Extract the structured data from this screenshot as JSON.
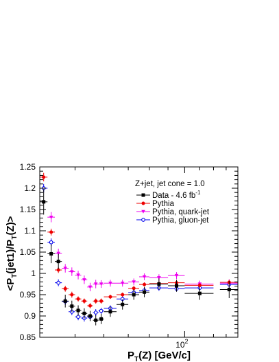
{
  "chart_data": {
    "type": "scatter",
    "title": "",
    "xlabel": "P_T(Z) [GeV/c]",
    "ylabel": "<P_T(jet1)/P_T(Z)>",
    "xscale": "log",
    "xlim": [
      40,
      140
    ],
    "ylim": [
      0.85,
      1.25
    ],
    "x_tick_labels": [
      {
        "value": 100,
        "base": "10",
        "exp": "2"
      }
    ],
    "y_ticks": [
      "0.85",
      "0.9",
      "0.95",
      "1",
      "1.05",
      "1.1",
      "1.15",
      "1.2",
      "1.25"
    ],
    "legend_header": "Z+jet, jet cone = 1.0",
    "legend_placement": "top-right",
    "grid": false,
    "series": [
      {
        "name": "Data - 4.6 fb",
        "name_sup": "-1",
        "color": "#000000",
        "marker": "square-filled",
        "points": [
          {
            "x": 41.0,
            "y": 1.168,
            "xerr": 1.0,
            "yerr": 0.03
          },
          {
            "x": 43.0,
            "y": 1.046,
            "xerr": 1.0,
            "yerr": 0.022
          },
          {
            "x": 45.0,
            "y": 1.028,
            "xerr": 1.0,
            "yerr": 0.018
          },
          {
            "x": 47.0,
            "y": 0.935,
            "xerr": 1.0,
            "yerr": 0.015
          },
          {
            "x": 49.0,
            "y": 0.923,
            "xerr": 1.0,
            "yerr": 0.013
          },
          {
            "x": 51.0,
            "y": 0.913,
            "xerr": 1.0,
            "yerr": 0.012
          },
          {
            "x": 53.0,
            "y": 0.906,
            "xerr": 1.0,
            "yerr": 0.012
          },
          {
            "x": 55.0,
            "y": 0.9,
            "xerr": 1.0,
            "yerr": 0.012
          },
          {
            "x": 57.0,
            "y": 0.89,
            "xerr": 1.0,
            "yerr": 0.012
          },
          {
            "x": 59.0,
            "y": 0.893,
            "xerr": 1.0,
            "yerr": 0.012
          },
          {
            "x": 62.5,
            "y": 0.91,
            "xerr": 2.5,
            "yerr": 0.012
          },
          {
            "x": 67.5,
            "y": 0.927,
            "xerr": 2.5,
            "yerr": 0.012
          },
          {
            "x": 72.5,
            "y": 0.95,
            "xerr": 2.5,
            "yerr": 0.012
          },
          {
            "x": 77.5,
            "y": 0.956,
            "xerr": 2.5,
            "yerr": 0.012
          },
          {
            "x": 85.0,
            "y": 0.975,
            "xerr": 5.0,
            "yerr": 0.013
          },
          {
            "x": 95.0,
            "y": 0.971,
            "xerr": 5.0,
            "yerr": 0.014
          },
          {
            "x": 110.0,
            "y": 0.953,
            "xerr": 10.0,
            "yerr": 0.015
          },
          {
            "x": 132.5,
            "y": 0.962,
            "xerr": 7.5,
            "yerr": 0.02
          }
        ]
      },
      {
        "name": "Pythia",
        "color": "#ee0000",
        "marker": "circle-filled",
        "points": [
          {
            "x": 41.0,
            "y": 1.226,
            "xerr": 1.0,
            "yerr": 0.01
          },
          {
            "x": 43.0,
            "y": 1.097,
            "xerr": 1.0,
            "yerr": 0.008
          },
          {
            "x": 45.0,
            "y": 1.008,
            "xerr": 1.0,
            "yerr": 0.007
          },
          {
            "x": 47.0,
            "y": 0.964,
            "xerr": 1.0,
            "yerr": 0.007
          },
          {
            "x": 49.0,
            "y": 0.95,
            "xerr": 1.0,
            "yerr": 0.007
          },
          {
            "x": 51.0,
            "y": 0.94,
            "xerr": 1.0,
            "yerr": 0.006
          },
          {
            "x": 53.0,
            "y": 0.935,
            "xerr": 1.0,
            "yerr": 0.006
          },
          {
            "x": 55.0,
            "y": 0.924,
            "xerr": 1.0,
            "yerr": 0.006
          },
          {
            "x": 57.0,
            "y": 0.935,
            "xerr": 1.0,
            "yerr": 0.006
          },
          {
            "x": 59.0,
            "y": 0.935,
            "xerr": 1.0,
            "yerr": 0.006
          },
          {
            "x": 62.5,
            "y": 0.945,
            "xerr": 2.5,
            "yerr": 0.005
          },
          {
            "x": 67.5,
            "y": 0.95,
            "xerr": 2.5,
            "yerr": 0.005
          },
          {
            "x": 72.5,
            "y": 0.965,
            "xerr": 2.5,
            "yerr": 0.005
          },
          {
            "x": 77.5,
            "y": 0.974,
            "xerr": 2.5,
            "yerr": 0.005
          },
          {
            "x": 85.0,
            "y": 0.976,
            "xerr": 5.0,
            "yerr": 0.005
          },
          {
            "x": 95.0,
            "y": 0.978,
            "xerr": 5.0,
            "yerr": 0.005
          },
          {
            "x": 110.0,
            "y": 0.972,
            "xerr": 10.0,
            "yerr": 0.005
          },
          {
            "x": 132.5,
            "y": 0.979,
            "xerr": 7.5,
            "yerr": 0.006
          }
        ]
      },
      {
        "name": "Pythia, quark-jet",
        "color": "#ee00ee",
        "marker": "triangle-down",
        "points": [
          {
            "x": 43.0,
            "y": 1.132,
            "xerr": 1.0,
            "yerr": 0.012
          },
          {
            "x": 45.0,
            "y": 1.047,
            "xerr": 1.0,
            "yerr": 0.011
          },
          {
            "x": 47.0,
            "y": 1.012,
            "xerr": 1.0,
            "yerr": 0.01
          },
          {
            "x": 49.0,
            "y": 1.004,
            "xerr": 1.0,
            "yerr": 0.01
          },
          {
            "x": 51.0,
            "y": 0.996,
            "xerr": 1.0,
            "yerr": 0.01
          },
          {
            "x": 53.0,
            "y": 0.985,
            "xerr": 1.0,
            "yerr": 0.01
          },
          {
            "x": 55.0,
            "y": 0.968,
            "xerr": 1.0,
            "yerr": 0.01
          },
          {
            "x": 57.0,
            "y": 0.975,
            "xerr": 1.0,
            "yerr": 0.01
          },
          {
            "x": 59.0,
            "y": 0.975,
            "xerr": 1.0,
            "yerr": 0.009
          },
          {
            "x": 62.5,
            "y": 0.977,
            "xerr": 2.5,
            "yerr": 0.008
          },
          {
            "x": 67.5,
            "y": 0.977,
            "xerr": 2.5,
            "yerr": 0.008
          },
          {
            "x": 72.5,
            "y": 0.98,
            "xerr": 2.5,
            "yerr": 0.008
          },
          {
            "x": 77.5,
            "y": 0.992,
            "xerr": 2.5,
            "yerr": 0.008
          },
          {
            "x": 85.0,
            "y": 0.99,
            "xerr": 5.0,
            "yerr": 0.008
          },
          {
            "x": 95.0,
            "y": 0.995,
            "xerr": 5.0,
            "yerr": 0.008
          },
          {
            "x": 110.0,
            "y": 0.975,
            "xerr": 10.0,
            "yerr": 0.008
          },
          {
            "x": 132.5,
            "y": 0.977,
            "xerr": 7.5,
            "yerr": 0.009
          }
        ]
      },
      {
        "name": "Pythia, gluon-jet",
        "color": "#0000ee",
        "marker": "circle-open",
        "points": [
          {
            "x": 41.0,
            "y": 1.2,
            "xerr": 1.0,
            "yerr": 0.01
          },
          {
            "x": 43.0,
            "y": 1.073,
            "xerr": 1.0,
            "yerr": 0.009
          },
          {
            "x": 45.0,
            "y": 0.978,
            "xerr": 1.0,
            "yerr": 0.008
          },
          {
            "x": 47.0,
            "y": 0.934,
            "xerr": 1.0,
            "yerr": 0.008
          },
          {
            "x": 49.0,
            "y": 0.91,
            "xerr": 1.0,
            "yerr": 0.008
          },
          {
            "x": 51.0,
            "y": 0.898,
            "xerr": 1.0,
            "yerr": 0.008
          },
          {
            "x": 53.0,
            "y": 0.895,
            "xerr": 1.0,
            "yerr": 0.008
          },
          {
            "x": 55.0,
            "y": 0.898,
            "xerr": 1.0,
            "yerr": 0.008
          },
          {
            "x": 57.0,
            "y": 0.908,
            "xerr": 1.0,
            "yerr": 0.008
          },
          {
            "x": 59.0,
            "y": 0.912,
            "xerr": 1.0,
            "yerr": 0.007
          },
          {
            "x": 62.5,
            "y": 0.918,
            "xerr": 2.5,
            "yerr": 0.007
          },
          {
            "x": 67.5,
            "y": 0.94,
            "xerr": 2.5,
            "yerr": 0.007
          },
          {
            "x": 72.5,
            "y": 0.955,
            "xerr": 2.5,
            "yerr": 0.007
          },
          {
            "x": 77.5,
            "y": 0.96,
            "xerr": 2.5,
            "yerr": 0.007
          },
          {
            "x": 85.0,
            "y": 0.966,
            "xerr": 5.0,
            "yerr": 0.007
          },
          {
            "x": 95.0,
            "y": 0.964,
            "xerr": 5.0,
            "yerr": 0.007
          },
          {
            "x": 110.0,
            "y": 0.966,
            "xerr": 10.0,
            "yerr": 0.007
          },
          {
            "x": 132.5,
            "y": 0.974,
            "xerr": 7.5,
            "yerr": 0.008
          }
        ]
      }
    ]
  }
}
